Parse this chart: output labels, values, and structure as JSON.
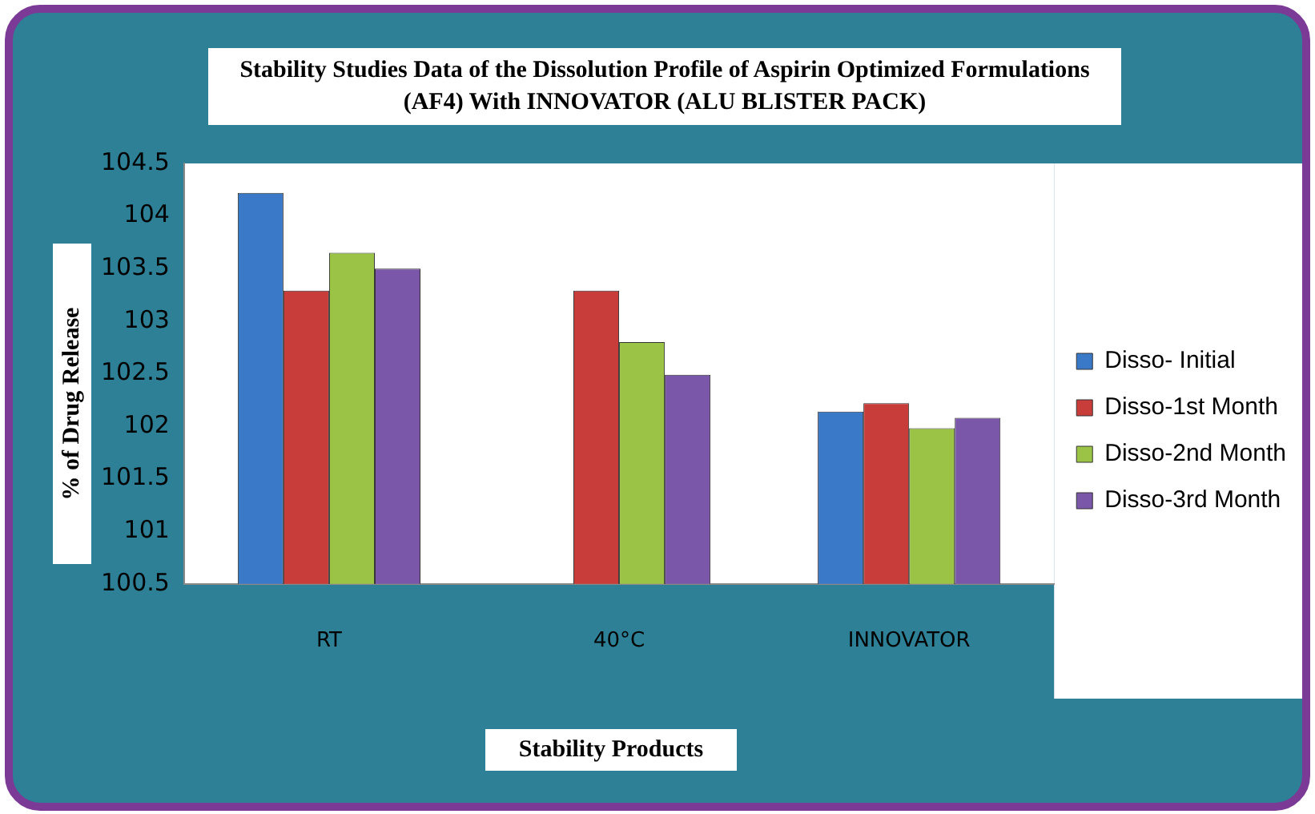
{
  "chart_data": {
    "type": "bar",
    "title": "Stability Studies Data of the Dissolution Profile of Aspirin Optimized Formulations (AF4) With INNOVATOR  (ALU BLISTER PACK)",
    "xlabel": "Stability Products",
    "ylabel": "% of Drug Release",
    "categories": [
      "RT",
      "40°C",
      "INNOVATOR"
    ],
    "series": [
      {
        "name": "Disso- Initial",
        "color": "#3a78c8",
        "values": [
          104.22,
          null,
          102.14
        ]
      },
      {
        "name": "Disso-1st Month",
        "color": "#c83c3a",
        "values": [
          103.29,
          103.29,
          102.22
        ]
      },
      {
        "name": "Disso-2nd Month",
        "color": "#9bc447",
        "values": [
          103.65,
          102.8,
          101.98
        ]
      },
      {
        "name": "Disso-3rd Month",
        "color": "#7a57a8",
        "values": [
          103.5,
          102.49,
          102.08
        ]
      }
    ],
    "ylim": [
      100.5,
      104.5
    ],
    "yticks": [
      100.5,
      101,
      101.5,
      102,
      102.5,
      103,
      103.5,
      104,
      104.5
    ],
    "grid": false,
    "legend": "right"
  }
}
